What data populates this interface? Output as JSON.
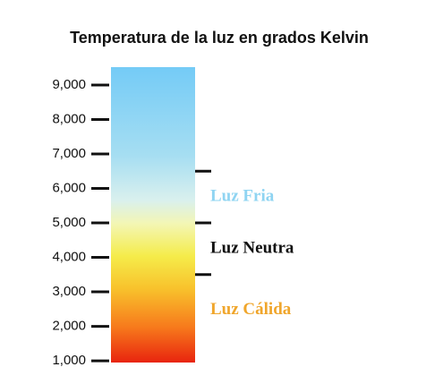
{
  "chart_data": {
    "type": "scale",
    "title": "Temperatura de la luz en grados Kelvin",
    "ylim": [
      950,
      9520
    ],
    "yticks": [
      {
        "value": 1000,
        "label": "1,000"
      },
      {
        "value": 2000,
        "label": "2,000"
      },
      {
        "value": 3000,
        "label": "3,000"
      },
      {
        "value": 4000,
        "label": "4,000"
      },
      {
        "value": 5000,
        "label": "5,000"
      },
      {
        "value": 6000,
        "label": "6,000"
      },
      {
        "value": 7000,
        "label": "7,000"
      },
      {
        "value": 8000,
        "label": "8,000"
      },
      {
        "value": 9000,
        "label": "9,000"
      }
    ],
    "boundaries": [
      6500,
      5000,
      3500
    ],
    "zones": [
      {
        "name": "Luz Fria",
        "color": "#8fd4f2"
      },
      {
        "name": "Luz Neutra",
        "color": "#111111"
      },
      {
        "name": "Luz Cálida",
        "color": "#f0a62c"
      }
    ]
  }
}
